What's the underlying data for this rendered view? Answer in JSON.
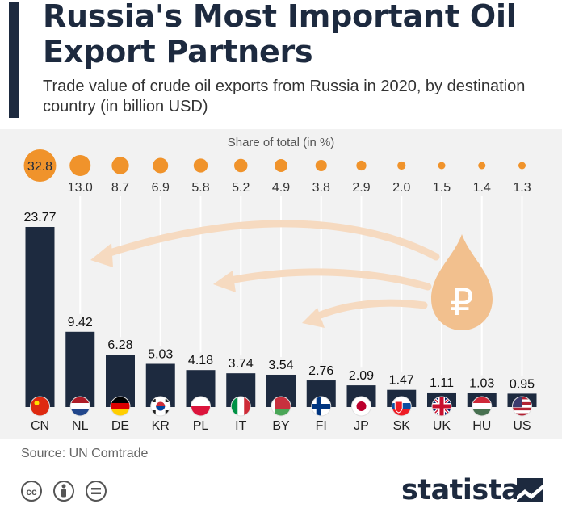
{
  "header": {
    "title": "Russia's Most Important Oil Export Partners",
    "subtitle": "Trade value of crude oil exports from Russia in 2020, by destination country (in billion USD)"
  },
  "chart_data": {
    "type": "bar",
    "title": "Russia's Most Important Oil Export Partners",
    "subtitle": "Trade value of crude oil exports from Russia in 2020, by destination country (in billion USD)",
    "xlabel": "",
    "ylabel": "billion USD",
    "ylim": [
      0,
      25
    ],
    "categories": [
      "CN",
      "NL",
      "DE",
      "KR",
      "PL",
      "IT",
      "BY",
      "FI",
      "JP",
      "SK",
      "UK",
      "HU",
      "US"
    ],
    "values": [
      23.77,
      9.42,
      6.28,
      5.03,
      4.18,
      3.74,
      3.54,
      2.76,
      2.09,
      1.47,
      1.11,
      1.03,
      0.95
    ],
    "value_labels": [
      "23.77",
      "9.42",
      "6.28",
      "5.03",
      "4.18",
      "3.74",
      "3.54",
      "2.76",
      "2.09",
      "1.47",
      "1.11",
      "1.03",
      "0.95"
    ],
    "share_label": "Share of total (in %)",
    "share_values": [
      32.8,
      13.0,
      8.7,
      6.9,
      5.8,
      5.2,
      4.9,
      3.8,
      2.9,
      2.0,
      1.5,
      1.4,
      1.3
    ],
    "share_labels": [
      "32.8",
      "13.0",
      "8.7",
      "6.9",
      "5.8",
      "5.2",
      "4.9",
      "3.8",
      "2.9",
      "2.0",
      "1.5",
      "1.4",
      "1.3"
    ],
    "flags": [
      "china-flag-icon",
      "netherlands-flag-icon",
      "germany-flag-icon",
      "south-korea-flag-icon",
      "poland-flag-icon",
      "italy-flag-icon",
      "belarus-flag-icon",
      "finland-flag-icon",
      "japan-flag-icon",
      "slovakia-flag-icon",
      "uk-flag-icon",
      "hungary-flag-icon",
      "us-flag-icon"
    ],
    "grid": false
  },
  "colors": {
    "bar": "#1d2a3f",
    "bubble": "#f0932b",
    "arrow": "#f6dac0",
    "drop": "#f2c08e",
    "background": "#f2f2f2"
  },
  "decoration": {
    "drop_symbol": "₽",
    "drop_icon": "ruble-oil-drop-icon"
  },
  "footer": {
    "source": "Source: UN Comtrade",
    "brand": "statista",
    "license_icons": [
      "cc-icon",
      "attribution-icon",
      "no-derivatives-icon"
    ]
  }
}
